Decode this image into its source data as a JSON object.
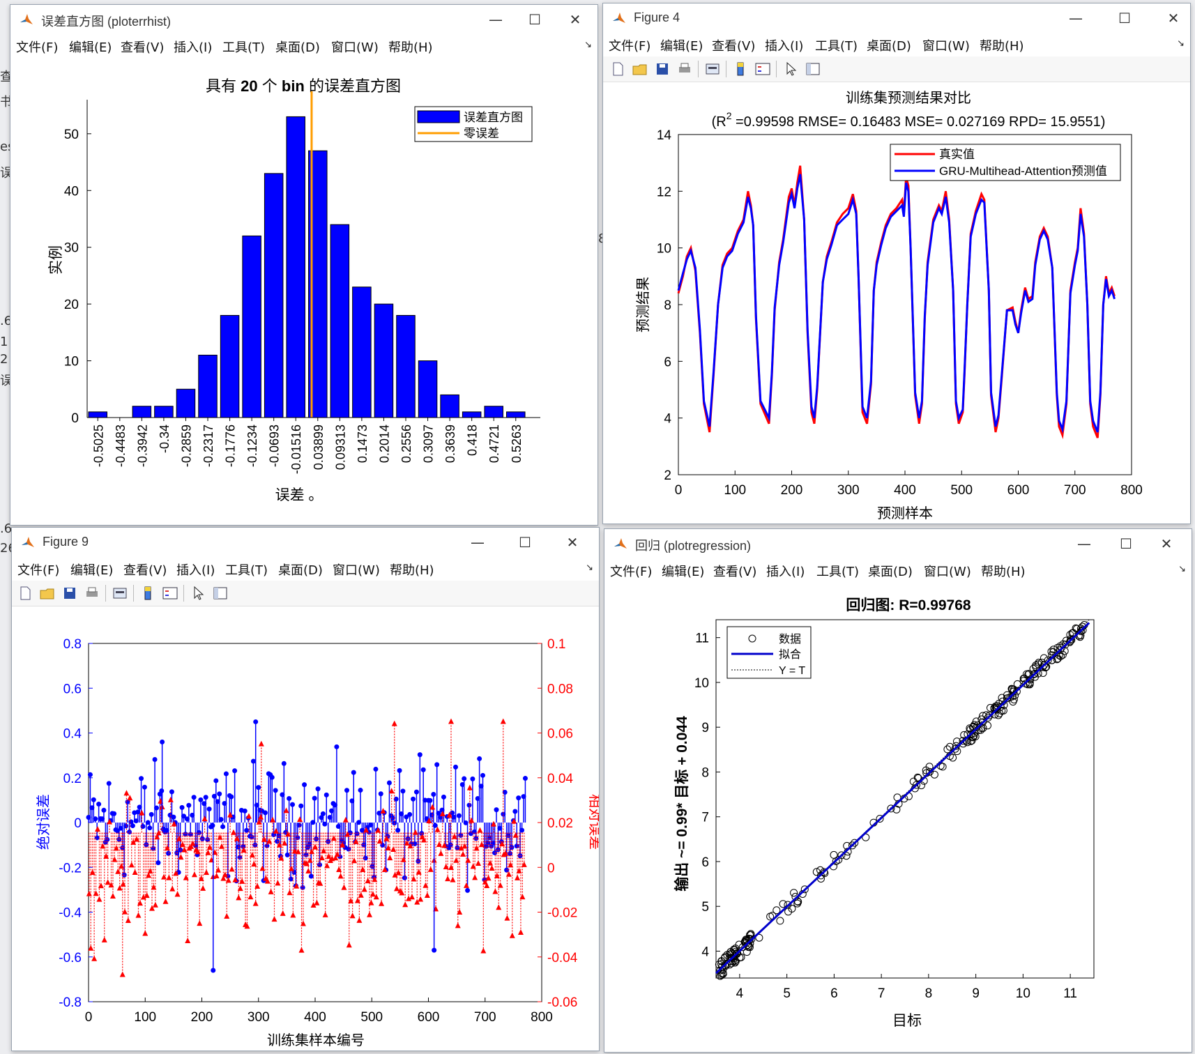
{
  "menu": [
    "文件(F)",
    "编辑(E)",
    "查看(V)",
    "插入(I)",
    "工具(T)",
    "桌面(D)",
    "窗口(W)",
    "帮助(H)"
  ],
  "window_controls": {
    "minimize": "—",
    "maximize": "☐",
    "close": "✕"
  },
  "background_fragments": [
    "查",
    "书",
    "es",
    "误",
    ".6",
    "1",
    "2",
    "误",
    ".6",
    "26",
    "8"
  ],
  "colors": {
    "blue": "#0000ff",
    "red": "#ff0000",
    "orange": "#ff9d00",
    "bar_edge": "#000000",
    "fit_line": "#0000cc"
  },
  "windows": {
    "hist": {
      "title": "误差直方图 (ploterrhist)",
      "chart_data": {
        "type": "bar",
        "title_prefix": "具有",
        "title_bold": "20",
        "title_mid": "个",
        "title_bold2": "bin",
        "title_suffix": "的误差直方图",
        "xlabel": "误差",
        "xlabel_suffix": "。",
        "ylabel": "实例",
        "categories": [
          "-0.5025",
          "-0.4483",
          "-0.3942",
          "-0.34",
          "-0.2859",
          "-0.2317",
          "-0.1776",
          "-0.1234",
          "-0.0693",
          "-0.01516",
          "0.03899",
          "0.09313",
          "0.1473",
          "0.2014",
          "0.2556",
          "0.3097",
          "0.3639",
          "0.418",
          "0.4721",
          "0.5263"
        ],
        "values": [
          1,
          0,
          2,
          2,
          5,
          11,
          18,
          32,
          43,
          53,
          47,
          34,
          23,
          20,
          18,
          10,
          4,
          1,
          2,
          1
        ],
        "yticks": [
          "0",
          "10",
          "20",
          "30",
          "40",
          "50"
        ],
        "ylim": [
          0,
          56
        ],
        "zero_error_bin": 9.72,
        "legend": [
          "误差直方图",
          "零误差"
        ]
      }
    },
    "fig4": {
      "title": "Figure 4",
      "chart_data": {
        "type": "line",
        "title_line1": "训练集预测结果对比",
        "title_line2_a": "(R",
        "title_line2_sup": "2",
        "title_line2_b": " =0.99598 RMSE= 0.16483 MSE= 0.027169 RPD= 15.9551)",
        "xlabel": "预测样本",
        "ylabel": "预测结果",
        "xlim": [
          0,
          800
        ],
        "ylim": [
          2,
          14
        ],
        "xticks": [
          "0",
          "100",
          "200",
          "300",
          "400",
          "500",
          "600",
          "700",
          "800"
        ],
        "yticks": [
          "2",
          "4",
          "6",
          "8",
          "10",
          "12",
          "14"
        ],
        "series": [
          {
            "name": "真实值",
            "color": "#ff0000"
          },
          {
            "name": "GRU-Multihead-Attention预测值",
            "color": "#0000ff"
          }
        ],
        "x": [
          0,
          8,
          15,
          22,
          30,
          38,
          45,
          55,
          62,
          70,
          78,
          86,
          95,
          105,
          115,
          123,
          128,
          132,
          137,
          145,
          160,
          165,
          170,
          178,
          185,
          195,
          200,
          205,
          210,
          215,
          222,
          228,
          235,
          240,
          245,
          255,
          262,
          270,
          280,
          290,
          300,
          308,
          314,
          318,
          325,
          333,
          340,
          345,
          350,
          358,
          366,
          375,
          385,
          395,
          398,
          402,
          406,
          410,
          418,
          425,
          430,
          435,
          440,
          450,
          460,
          465,
          472,
          478,
          485,
          490,
          495,
          502,
          505,
          510,
          516,
          525,
          535,
          540,
          548,
          552,
          560,
          565,
          570,
          580,
          590,
          595,
          600,
          605,
          612,
          618,
          625,
          630,
          638,
          645,
          652,
          660,
          668,
          672,
          678,
          685,
          692,
          700,
          705,
          710,
          716,
          722,
          727,
          732,
          740,
          745,
          750,
          755,
          760,
          765,
          770
        ],
        "y_true": [
          8.4,
          9.0,
          9.7,
          10.0,
          9.2,
          7.0,
          4.5,
          3.5,
          5.5,
          8.0,
          9.4,
          9.8,
          10.0,
          10.6,
          11.0,
          12.0,
          11.5,
          10.8,
          7.5,
          4.5,
          3.8,
          5.5,
          7.8,
          9.5,
          10.3,
          11.8,
          12.1,
          11.5,
          12.3,
          12.9,
          11.0,
          7.0,
          4.2,
          3.8,
          5.0,
          8.8,
          9.7,
          10.2,
          10.9,
          11.2,
          11.4,
          11.9,
          11.3,
          9.0,
          4.2,
          3.8,
          5.2,
          8.5,
          9.5,
          10.2,
          10.8,
          11.2,
          11.4,
          11.7,
          11.2,
          12.5,
          12.2,
          10.0,
          4.8,
          3.8,
          4.5,
          7.5,
          9.5,
          11.0,
          11.5,
          11.3,
          12.0,
          11.0,
          8.5,
          4.5,
          3.8,
          4.2,
          5.5,
          8.0,
          10.5,
          11.3,
          11.9,
          11.7,
          8.5,
          4.8,
          3.5,
          4.0,
          5.2,
          7.8,
          7.9,
          7.4,
          7.0,
          7.8,
          8.6,
          8.2,
          8.3,
          9.5,
          10.4,
          10.7,
          10.4,
          9.3,
          4.8,
          3.7,
          3.4,
          4.5,
          8.5,
          9.5,
          10.0,
          11.4,
          10.5,
          8.0,
          4.5,
          3.7,
          3.3,
          4.8,
          8.0,
          9.0,
          8.4,
          8.6,
          8.3
        ],
        "y_pred": [
          8.5,
          9.1,
          9.6,
          9.9,
          9.3,
          7.1,
          4.6,
          3.7,
          5.6,
          8.0,
          9.3,
          9.7,
          9.9,
          10.5,
          10.9,
          11.8,
          11.4,
          10.8,
          7.6,
          4.6,
          4.0,
          5.6,
          7.9,
          9.4,
          10.2,
          11.6,
          11.9,
          11.4,
          12.1,
          12.6,
          11.0,
          7.1,
          4.4,
          4.0,
          5.1,
          8.8,
          9.6,
          10.1,
          10.8,
          11.0,
          11.2,
          11.7,
          11.2,
          9.0,
          4.4,
          4.0,
          5.3,
          8.5,
          9.4,
          10.1,
          10.7,
          11.1,
          11.3,
          11.5,
          11.1,
          12.3,
          12.0,
          10.0,
          4.9,
          4.0,
          4.6,
          7.6,
          9.4,
          10.9,
          11.4,
          11.2,
          11.8,
          10.9,
          8.5,
          4.6,
          4.0,
          4.3,
          5.6,
          8.0,
          10.4,
          11.2,
          11.7,
          11.6,
          8.5,
          4.9,
          3.7,
          4.1,
          5.3,
          7.8,
          7.8,
          7.3,
          7.0,
          7.7,
          8.5,
          8.1,
          8.2,
          9.4,
          10.3,
          10.6,
          10.3,
          9.3,
          4.9,
          3.9,
          3.6,
          4.6,
          8.4,
          9.4,
          9.9,
          11.2,
          10.4,
          8.0,
          4.6,
          3.9,
          3.5,
          4.9,
          8.0,
          8.9,
          8.3,
          8.5,
          8.2
        ]
      }
    },
    "fig9": {
      "title": "Figure 9",
      "chart_data": {
        "type": "stem",
        "xlabel": "训练集样本编号",
        "ylabel_left": "绝对误差",
        "ylabel_right": "相对误差",
        "xlim": [
          0,
          800
        ],
        "ylim_left": [
          -0.8,
          0.8
        ],
        "ylim_right": [
          -0.06,
          0.1
        ],
        "xticks": [
          "0",
          "100",
          "200",
          "300",
          "400",
          "500",
          "600",
          "700",
          "800"
        ],
        "yticks_left": [
          "-0.8",
          "-0.6",
          "-0.4",
          "-0.2",
          "0",
          "0.2",
          "0.4",
          "0.6",
          "0.8"
        ],
        "yticks_right": [
          "-0.06",
          "-0.04",
          "-0.02",
          "0",
          "0.02",
          "0.04",
          "0.06",
          "0.08",
          "0.1"
        ],
        "samples": 772,
        "notable_abs": [
          [
            295,
            0.45
          ],
          [
            130,
            0.36
          ],
          [
            220,
            -0.66
          ],
          [
            610,
            -0.57
          ]
        ],
        "notable_rel": [
          [
            540,
            0.064
          ],
          [
            640,
            0.065
          ],
          [
            732,
            0.065
          ],
          [
            305,
            0.055
          ],
          [
            60,
            -0.048
          ]
        ]
      }
    },
    "regress": {
      "title": "回归 (plotregression)",
      "chart_data": {
        "type": "scatter",
        "title": "回归图: R=0.99768",
        "xlabel": "目标",
        "ylabel": "输出 ~= 0.99* 目标 + 0.044",
        "xlim": [
          3.5,
          11.5
        ],
        "ylim": [
          3.4,
          11.4
        ],
        "xticks": [
          "4",
          "5",
          "6",
          "7",
          "8",
          "9",
          "10",
          "11"
        ],
        "yticks": [
          "4",
          "5",
          "6",
          "7",
          "8",
          "9",
          "10",
          "11"
        ],
        "fit": {
          "slope": 0.99,
          "intercept": 0.044
        },
        "legend": [
          "数据",
          "拟合",
          "Y = T"
        ],
        "points": 772
      }
    }
  }
}
